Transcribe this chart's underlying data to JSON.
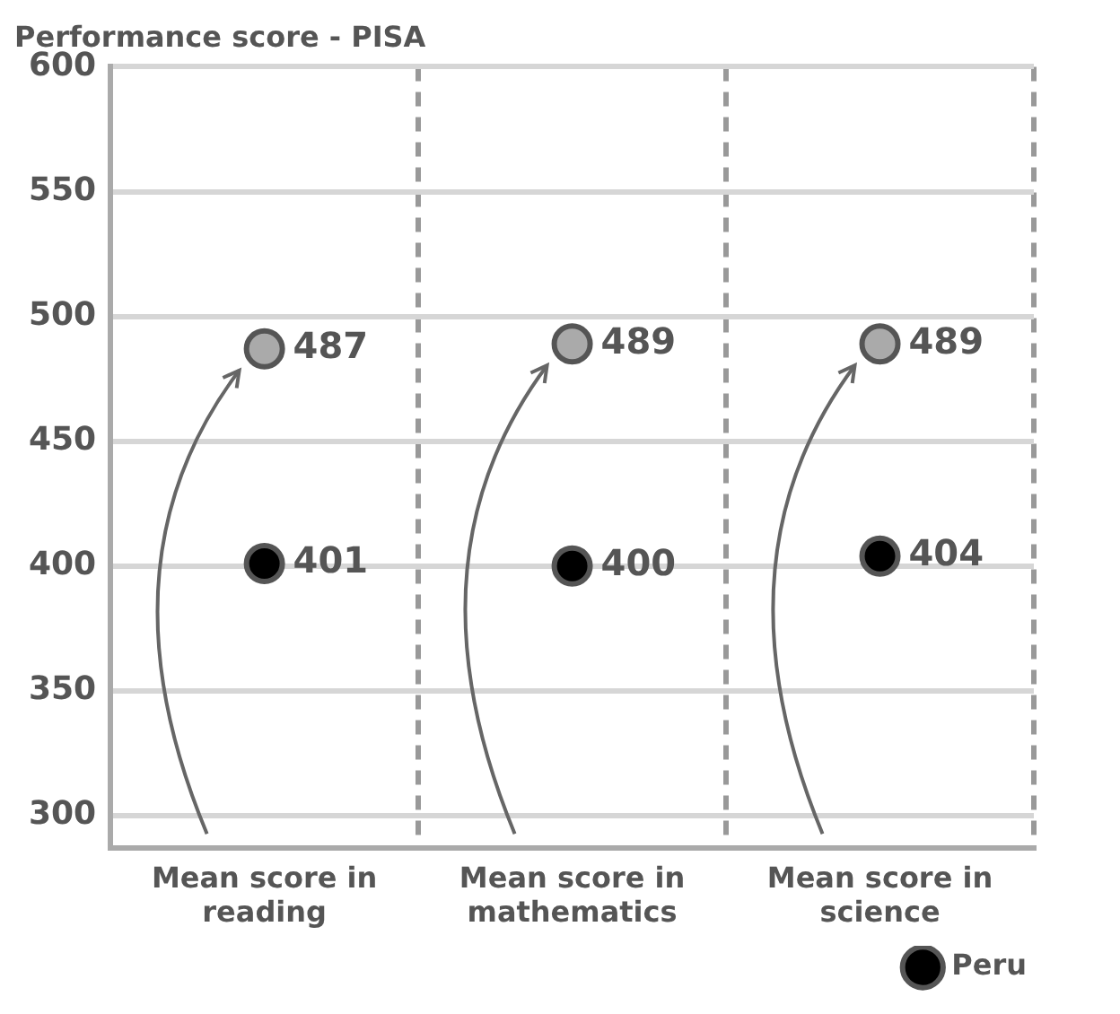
{
  "chart_data": {
    "type": "scatter",
    "ylabel": "Performance score - PISA",
    "categories": [
      "Mean score in reading",
      "Mean score in mathematics",
      "Mean score in science"
    ],
    "series": [
      {
        "color": "#aaaaaa",
        "values": [
          487,
          489,
          489
        ]
      },
      {
        "name": "Peru",
        "color": "#000000",
        "values": [
          401,
          400,
          404
        ]
      }
    ],
    "ylim": [
      287,
      600
    ],
    "yticks": [
      300,
      350,
      400,
      450,
      500,
      550,
      600
    ],
    "grid": true,
    "legend": "bottom right",
    "marker": "circle",
    "data_labels": true
  }
}
